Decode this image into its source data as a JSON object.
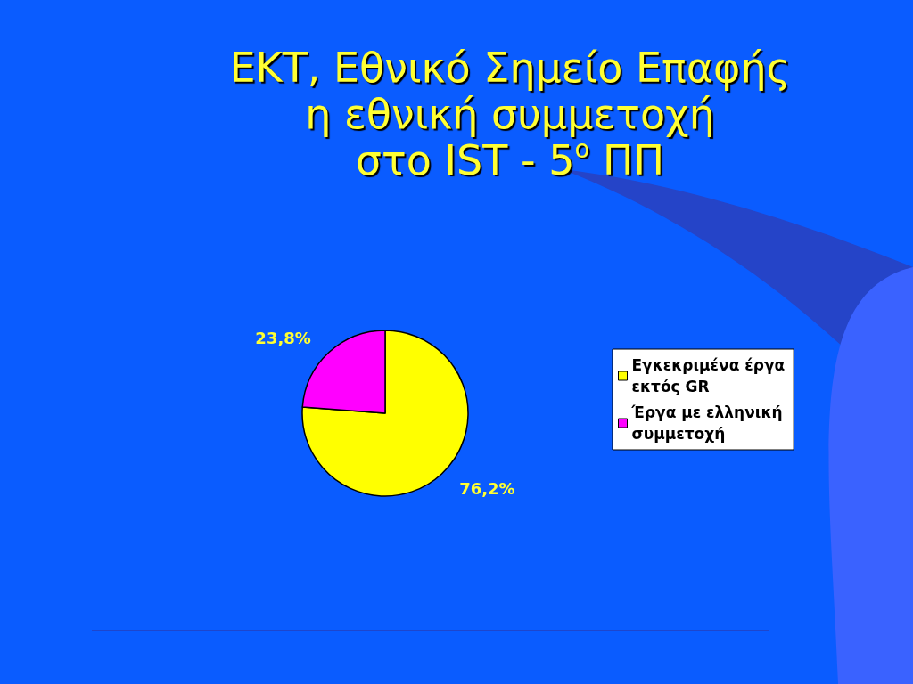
{
  "chart_data": {
    "type": "pie",
    "title": "ΕΚΤ, Εθνικό Σημείο Επαφής\nη εθνική συμμετοχή\nστο IST - 5$^{ο}$ ΠΠ",
    "categories": [
      "Εγκεκριμένα έργα εκτός GR",
      "Έργα με ελληνική συμμετοχή"
    ],
    "values": [
      76.2,
      23.8
    ],
    "colors": [
      "#ffff00",
      "#ff00ff"
    ],
    "value_labels": [
      "76,2%",
      "23,8%"
    ],
    "legend": "right"
  }
}
